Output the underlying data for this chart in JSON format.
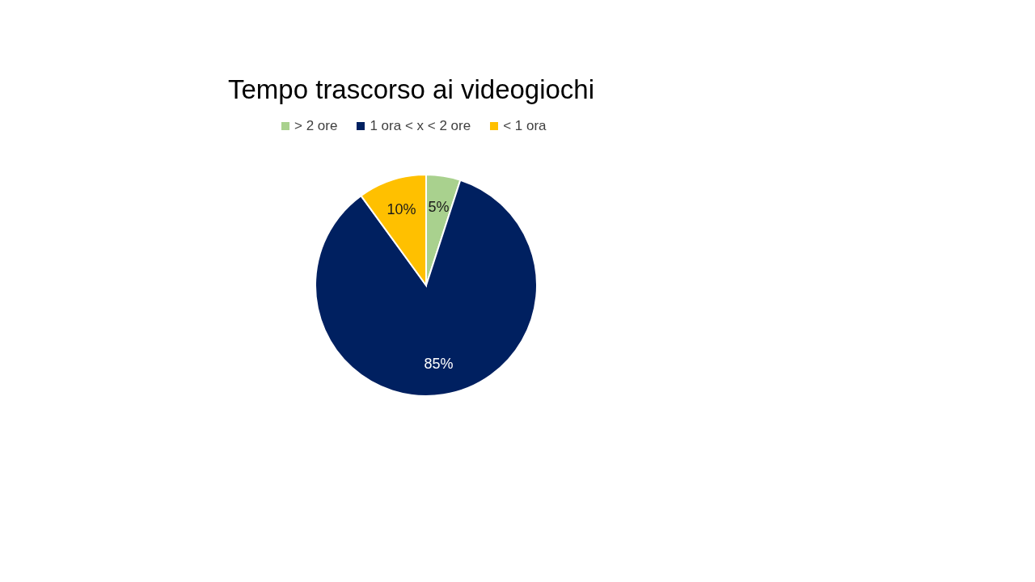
{
  "chart_data": {
    "type": "pie",
    "title": "Tempo trascorso ai videogiochi",
    "categories": [
      "> 2 ore",
      "1 ora < x < 2 ore",
      "< 1 ora"
    ],
    "values": [
      5,
      85,
      10
    ],
    "colors": [
      "#a9d18e",
      "#002060",
      "#ffc000"
    ],
    "value_labels": [
      "5%",
      "85%",
      "10%"
    ],
    "legend": "top"
  }
}
